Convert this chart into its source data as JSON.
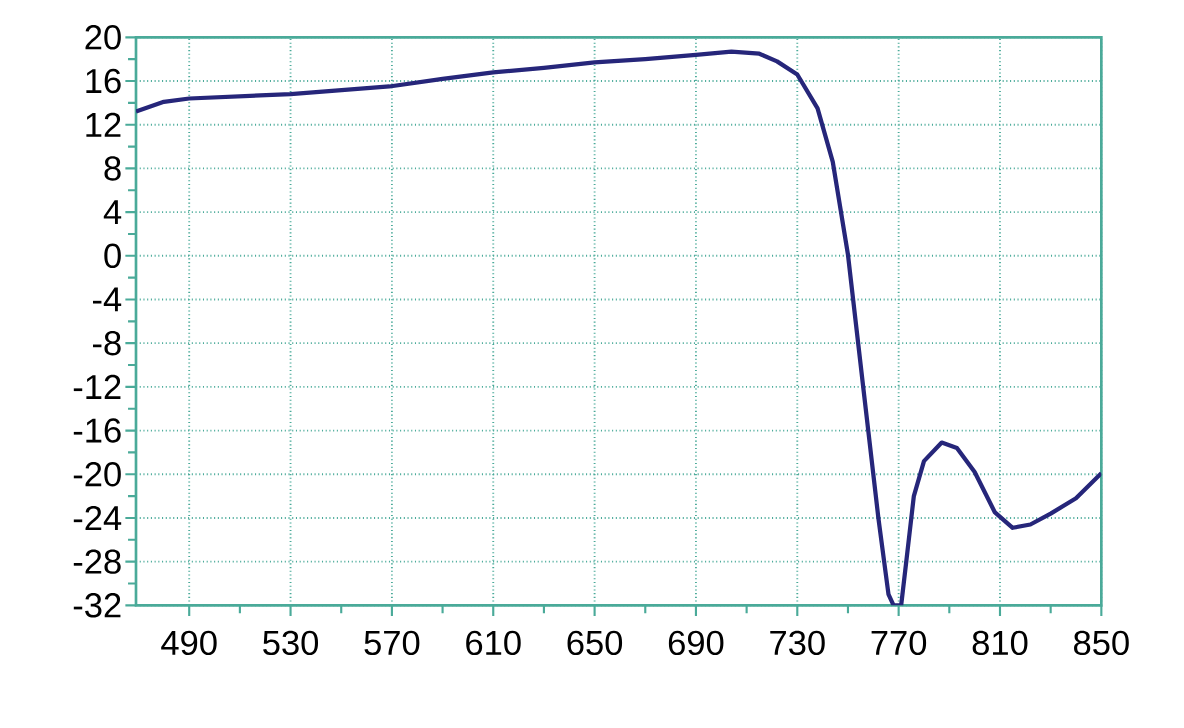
{
  "chart_data": {
    "type": "line",
    "x": [
      469,
      480,
      490,
      530,
      569,
      590,
      610,
      630,
      650,
      670,
      690,
      704,
      715,
      722,
      730,
      738,
      744,
      750,
      756,
      762,
      766,
      768,
      771,
      773,
      776,
      780,
      787,
      793,
      800,
      808,
      815,
      822,
      830,
      840,
      850
    ],
    "series": [
      {
        "color": "#26267a",
        "values": [
          13.2,
          14.1,
          14.4,
          14.8,
          15.5,
          16.2,
          16.8,
          17.2,
          17.7,
          18.0,
          18.4,
          18.7,
          18.5,
          17.8,
          16.6,
          13.5,
          8.6,
          0.1,
          -12,
          -24,
          -31,
          -32,
          -32,
          -28,
          -22,
          -18.8,
          -17.1,
          -17.6,
          -19.8,
          -23.5,
          -24.9,
          -24.6,
          -23.6,
          -22.2,
          -19.9
        ]
      }
    ],
    "xlim": [
      469,
      850
    ],
    "ylim": [
      -32,
      20
    ],
    "xticks": [
      490,
      530,
      570,
      610,
      650,
      690,
      730,
      770,
      810,
      850
    ],
    "yticks": [
      -32,
      -28,
      -24,
      -20,
      -16,
      -12,
      -8,
      -4,
      0,
      4,
      8,
      12,
      16,
      20
    ],
    "grid": true,
    "marker": "none",
    "line_style": "solid"
  }
}
